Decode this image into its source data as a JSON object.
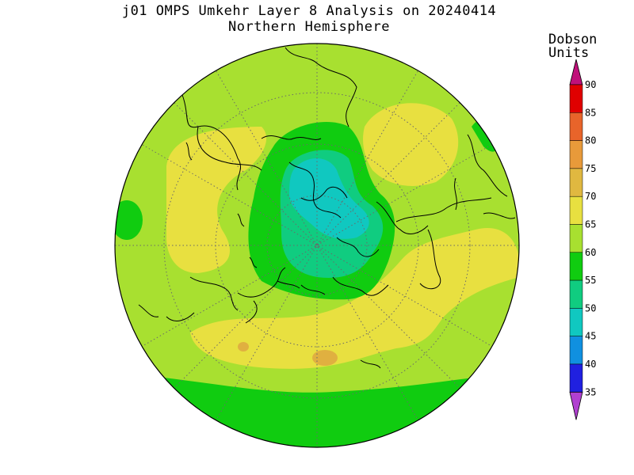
{
  "title": "j01 OMPS Umkehr Layer 8 Analysis on 20240414",
  "subtitle": "Northern Hemisphere",
  "colorbar": {
    "units_line1": "Dobson",
    "units_line2": "Units",
    "levels": [
      {
        "label": "90",
        "color": "#e00000"
      },
      {
        "label": "85",
        "color": "#e8642a"
      },
      {
        "label": "80",
        "color": "#e89a3a"
      },
      {
        "label": "75",
        "color": "#e0b840"
      },
      {
        "label": "70",
        "color": "#e8e040"
      },
      {
        "label": "65",
        "color": "#a8e030"
      },
      {
        "label": "60",
        "color": "#10cc10"
      },
      {
        "label": "55",
        "color": "#10cc80"
      },
      {
        "label": "50",
        "color": "#10c8c0"
      },
      {
        "label": "45",
        "color": "#1090e0"
      },
      {
        "label": "40",
        "color": "#2020e0"
      },
      {
        "label": "35",
        "color": "#7000d0"
      }
    ],
    "top_arrow_color": "#c0107a",
    "bottom_arrow_color": "#b040d0"
  },
  "map": {
    "projection": "north-polar-stereographic",
    "colors": {
      "background_green": "#a8e030",
      "yellow": "#e8e040",
      "green": "#10cc10",
      "teal": "#10cc80",
      "cyan": "#10c8c0",
      "orange": "#e0b040"
    }
  }
}
